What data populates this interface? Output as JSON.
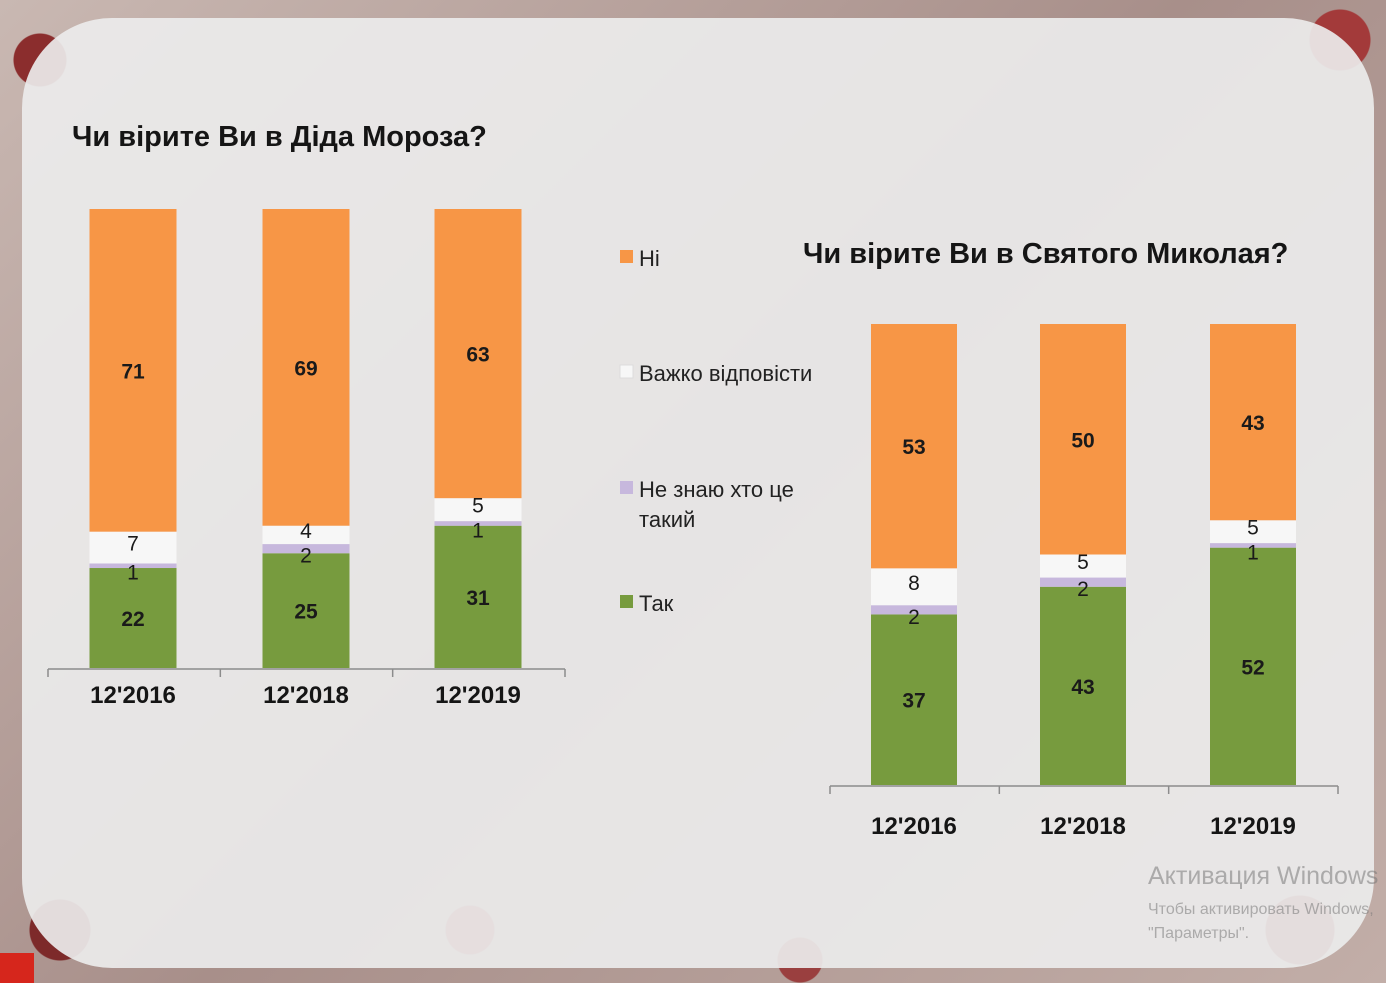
{
  "colors": {
    "Ні": "#f79646",
    "Важко відповісти": "#f7f7f7",
    "Не знаю хто це такий": "#c7b8dd",
    "Так": "#779b3e"
  },
  "legend": [
    {
      "label": "Ні",
      "lines": [
        "Ні"
      ]
    },
    {
      "label": "Важко відповісти",
      "lines": [
        "Важко відповісти"
      ]
    },
    {
      "label": "Не знаю хто це такий",
      "lines": [
        "Не знаю хто це",
        "такий"
      ]
    },
    {
      "label": "Так",
      "lines": [
        "Так"
      ]
    }
  ],
  "chart_data": [
    {
      "type": "bar",
      "stacked": true,
      "title": "Чи вірите Ви в Діда Мороза?",
      "categories": [
        "12'2016",
        "12'2018",
        "12'2019"
      ],
      "ylim": [
        0,
        100
      ],
      "series": [
        {
          "name": "Так",
          "values": [
            22,
            25,
            31
          ]
        },
        {
          "name": "Не знаю хто це такий",
          "values": [
            1,
            2,
            1
          ]
        },
        {
          "name": "Важко відповісти",
          "values": [
            7,
            4,
            5
          ]
        },
        {
          "name": "Ні",
          "values": [
            71,
            69,
            63
          ]
        }
      ]
    },
    {
      "type": "bar",
      "stacked": true,
      "title": "Чи вірите Ви в Святого Миколая?",
      "categories": [
        "12'2016",
        "12'2018",
        "12'2019"
      ],
      "ylim": [
        0,
        100
      ],
      "series": [
        {
          "name": "Так",
          "values": [
            37,
            43,
            52
          ]
        },
        {
          "name": "Не знаю хто це такий",
          "values": [
            2,
            2,
            1
          ]
        },
        {
          "name": "Важко відповісти",
          "values": [
            8,
            5,
            5
          ]
        },
        {
          "name": "Ні",
          "values": [
            53,
            50,
            43
          ]
        }
      ]
    }
  ],
  "watermark": {
    "title": "Активация Windows",
    "line1": "Чтобы активировать Windows,",
    "line2": "\"Параметры\"."
  }
}
